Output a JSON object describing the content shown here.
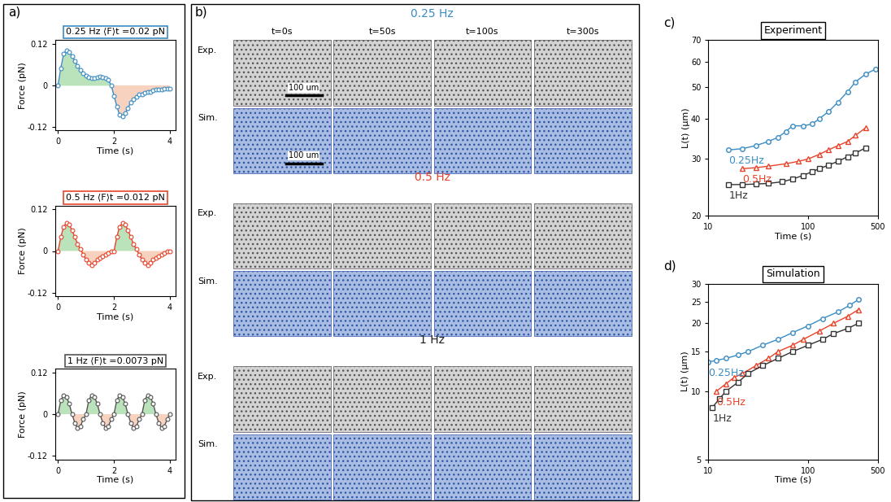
{
  "chart_data": [
    {
      "type": "line",
      "panel_label": "a)",
      "title": "0.25 Hz ⟨F⟩t =0.02 pN",
      "x_label": "Time (s)",
      "y_label": "Force (pN)",
      "xlim": [
        -0.1,
        4.2
      ],
      "ylim": [
        -0.13,
        0.13
      ],
      "xticks": [
        0,
        2,
        4
      ],
      "yticks": [
        -0.12,
        0,
        0.12
      ],
      "x": [
        0.0,
        0.1,
        0.2,
        0.3,
        0.4,
        0.5,
        0.6,
        0.7,
        0.8,
        0.9,
        1.0,
        1.1,
        1.2,
        1.3,
        1.4,
        1.5,
        1.6,
        1.7,
        1.8,
        1.9,
        2.0,
        2.1,
        2.2,
        2.3,
        2.4,
        2.5,
        2.6,
        2.7,
        2.8,
        2.9,
        3.0,
        3.1,
        3.2,
        3.3,
        3.4,
        3.5,
        3.6,
        3.7,
        3.8,
        3.9,
        4.0
      ],
      "series": [
        {
          "color": "#3a8cc4",
          "marker": "circle",
          "values": [
            0.0,
            0.05,
            0.09,
            0.1,
            0.095,
            0.085,
            0.07,
            0.055,
            0.045,
            0.035,
            0.028,
            0.022,
            0.02,
            0.02,
            0.022,
            0.025,
            0.022,
            0.02,
            0.015,
            0.0,
            -0.03,
            -0.06,
            -0.085,
            -0.09,
            -0.08,
            -0.065,
            -0.05,
            -0.04,
            -0.032,
            -0.027,
            -0.025,
            -0.022,
            -0.02,
            -0.018,
            -0.015,
            -0.013,
            -0.012,
            -0.011,
            -0.01,
            -0.01,
            -0.01
          ]
        }
      ]
    },
    {
      "type": "line",
      "title": "0.5 Hz ⟨F⟩t =0.012 pN",
      "x_label": "Time (s)",
      "y_label": "Force (pN)",
      "xlim": [
        -0.1,
        4.2
      ],
      "ylim": [
        -0.13,
        0.13
      ],
      "xticks": [
        0,
        2,
        4
      ],
      "yticks": [
        -0.12,
        0,
        0.12
      ],
      "x": [
        0.0,
        0.1,
        0.2,
        0.3,
        0.4,
        0.5,
        0.6,
        0.7,
        0.8,
        0.9,
        1.0,
        1.1,
        1.2,
        1.3,
        1.4,
        1.5,
        1.6,
        1.7,
        1.8,
        1.9,
        2.0,
        2.1,
        2.2,
        2.3,
        2.4,
        2.5,
        2.6,
        2.7,
        2.8,
        2.9,
        3.0,
        3.1,
        3.2,
        3.3,
        3.4,
        3.5,
        3.6,
        3.7,
        3.8,
        3.9,
        4.0
      ],
      "series": [
        {
          "color": "#e8432a",
          "marker": "circle",
          "values": [
            0.0,
            0.04,
            0.07,
            0.08,
            0.075,
            0.06,
            0.04,
            0.02,
            0.005,
            -0.01,
            -0.025,
            -0.035,
            -0.04,
            -0.035,
            -0.025,
            -0.02,
            -0.015,
            -0.01,
            -0.005,
            0.0,
            0.0,
            0.04,
            0.07,
            0.08,
            0.075,
            0.06,
            0.04,
            0.02,
            0.005,
            -0.01,
            -0.025,
            -0.035,
            -0.04,
            -0.035,
            -0.025,
            -0.02,
            -0.015,
            -0.01,
            -0.005,
            0.0,
            0.0
          ]
        }
      ]
    },
    {
      "type": "line",
      "title": "1 Hz ⟨F⟩t =0.0073 pN",
      "x_label": "Time (s)",
      "y_label": "Force (pN)",
      "xlim": [
        -0.1,
        4.2
      ],
      "ylim": [
        -0.13,
        0.13
      ],
      "xticks": [
        0,
        2,
        4
      ],
      "yticks": [
        -0.12,
        0,
        0.12
      ],
      "x": [
        0.0,
        0.1,
        0.2,
        0.3,
        0.4,
        0.5,
        0.6,
        0.7,
        0.8,
        0.9,
        1.0,
        1.1,
        1.2,
        1.3,
        1.4,
        1.5,
        1.6,
        1.7,
        1.8,
        1.9,
        2.0,
        2.1,
        2.2,
        2.3,
        2.4,
        2.5,
        2.6,
        2.7,
        2.8,
        2.9,
        3.0,
        3.1,
        3.2,
        3.3,
        3.4,
        3.5,
        3.6,
        3.7,
        3.8,
        3.9,
        4.0
      ],
      "series": [
        {
          "color": "#555555",
          "marker": "circle",
          "values": [
            0.0,
            0.04,
            0.055,
            0.05,
            0.03,
            0.0,
            -0.025,
            -0.04,
            -0.035,
            -0.015,
            0.0,
            0.04,
            0.055,
            0.05,
            0.03,
            0.0,
            -0.025,
            -0.04,
            -0.035,
            -0.015,
            0.0,
            0.04,
            0.055,
            0.05,
            0.03,
            0.0,
            -0.025,
            -0.04,
            -0.035,
            -0.015,
            0.0,
            0.04,
            0.055,
            0.05,
            0.03,
            0.0,
            -0.025,
            -0.04,
            -0.035,
            -0.015,
            0.0
          ]
        }
      ]
    },
    {
      "type": "line",
      "panel_label": "c)",
      "title": "Experiment",
      "x_label": "Time (s)",
      "y_label": "L(t) (µm)",
      "log": true,
      "xlim": [
        10,
        500
      ],
      "ylim": [
        20,
        70
      ],
      "xticks": [
        10,
        100,
        500
      ],
      "yticks": [
        20,
        30,
        40,
        50,
        60,
        70
      ],
      "series": [
        {
          "name": "0.25Hz",
          "color": "#3a8cc4",
          "marker": "circle",
          "x": [
            16,
            22,
            30,
            40,
            50,
            60,
            70,
            90,
            110,
            130,
            160,
            200,
            250,
            300,
            380,
            480
          ],
          "values": [
            32,
            32.3,
            33,
            34,
            35,
            36.5,
            38,
            38,
            38.5,
            40,
            42,
            45,
            48.5,
            52,
            55,
            57
          ]
        },
        {
          "name": "0.5Hz",
          "color": "#e8432a",
          "marker": "triangle",
          "x": [
            22,
            30,
            40,
            60,
            80,
            100,
            130,
            160,
            200,
            250,
            300,
            380
          ],
          "values": [
            28,
            28.2,
            28.5,
            29,
            29.5,
            30,
            31,
            32,
            33,
            34,
            35.5,
            37.5
          ]
        },
        {
          "name": "1Hz",
          "color": "#333333",
          "marker": "square",
          "x": [
            16,
            22,
            30,
            40,
            55,
            70,
            90,
            110,
            130,
            160,
            200,
            250,
            300,
            380
          ],
          "values": [
            25,
            25,
            25.1,
            25.2,
            25.5,
            26,
            26.7,
            27.4,
            28,
            28.7,
            29.5,
            30.5,
            31.3,
            32.5
          ]
        }
      ]
    },
    {
      "type": "line",
      "panel_label": "d)",
      "title": "Simulation",
      "x_label": "Time (s)",
      "y_label": "L(t) (µm)",
      "log": true,
      "xlim": [
        10,
        500
      ],
      "ylim": [
        5,
        30
      ],
      "xticks": [
        10,
        100,
        500
      ],
      "yticks": [
        5,
        10,
        15,
        20,
        25,
        30
      ],
      "series": [
        {
          "name": "0.25Hz",
          "color": "#3a8cc4",
          "marker": "circle",
          "x": [
            10,
            12,
            15,
            20,
            25,
            35,
            50,
            70,
            100,
            140,
            200,
            260,
            320
          ],
          "values": [
            13.5,
            13.7,
            14,
            14.5,
            15,
            16,
            17,
            18.2,
            19.5,
            21,
            22.5,
            24,
            25.5
          ]
        },
        {
          "name": "0.5Hz",
          "color": "#e8432a",
          "marker": "triangle",
          "x": [
            12,
            15,
            18,
            22,
            30,
            40,
            50,
            70,
            90,
            130,
            180,
            250,
            320
          ],
          "values": [
            10,
            10.8,
            11.5,
            12,
            13,
            14,
            15,
            16,
            17,
            18.5,
            20,
            21.5,
            23
          ]
        },
        {
          "name": "1Hz",
          "color": "#333333",
          "marker": "square",
          "x": [
            11,
            13,
            15,
            20,
            25,
            35,
            50,
            70,
            100,
            140,
            180,
            250,
            320
          ],
          "values": [
            8.5,
            9.3,
            10,
            11,
            12,
            13,
            14,
            15,
            16,
            17,
            18,
            19,
            20
          ]
        }
      ]
    }
  ],
  "image_grid": {
    "panel_label": "b)",
    "columns": [
      "t=0s",
      "t=50s",
      "t=100s",
      "t=300s"
    ],
    "rows": [
      "Exp.",
      "Sim."
    ],
    "blocks": [
      {
        "title": "0.25 Hz",
        "color": "#3a8cc4",
        "scale_bar": "100 um"
      },
      {
        "title": "0.5 Hz",
        "color": "#e8432a"
      },
      {
        "title": "1 Hz",
        "color": "#222222"
      }
    ]
  }
}
